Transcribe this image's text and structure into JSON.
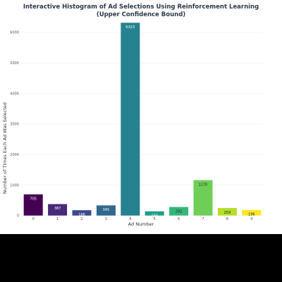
{
  "chart_data": {
    "type": "bar",
    "title": "Interactive Histogram of Ad Selections Using Reinforcement Learning",
    "subtitle": "(Upper Confidence Bound)",
    "xlabel": "Ad Number",
    "ylabel": "Number of Times Each Ad Was Selected",
    "categories": [
      "0",
      "1",
      "2",
      "3",
      "4",
      "5",
      "6",
      "7",
      "8",
      "9"
    ],
    "values": [
      705,
      387,
      186,
      345,
      6323,
      150,
      292,
      1170,
      259,
      196
    ],
    "ylim": [
      0,
      6600
    ],
    "yticks": [
      "0",
      "1000",
      "2000",
      "3000",
      "4000",
      "5000",
      "6000"
    ],
    "grid": true,
    "colors": [
      "#440154",
      "#482878",
      "#3e4989",
      "#31688e",
      "#26828e",
      "#1f9e89",
      "#35b779",
      "#6ece58",
      "#b5de2b",
      "#fde725"
    ],
    "bar_label_colors": [
      "#ffffff",
      "#ffffff",
      "#ffffff",
      "#ffffff",
      "#ffffff",
      "#ffffff",
      "#222222",
      "#222222",
      "#222222",
      "#222222"
    ]
  }
}
